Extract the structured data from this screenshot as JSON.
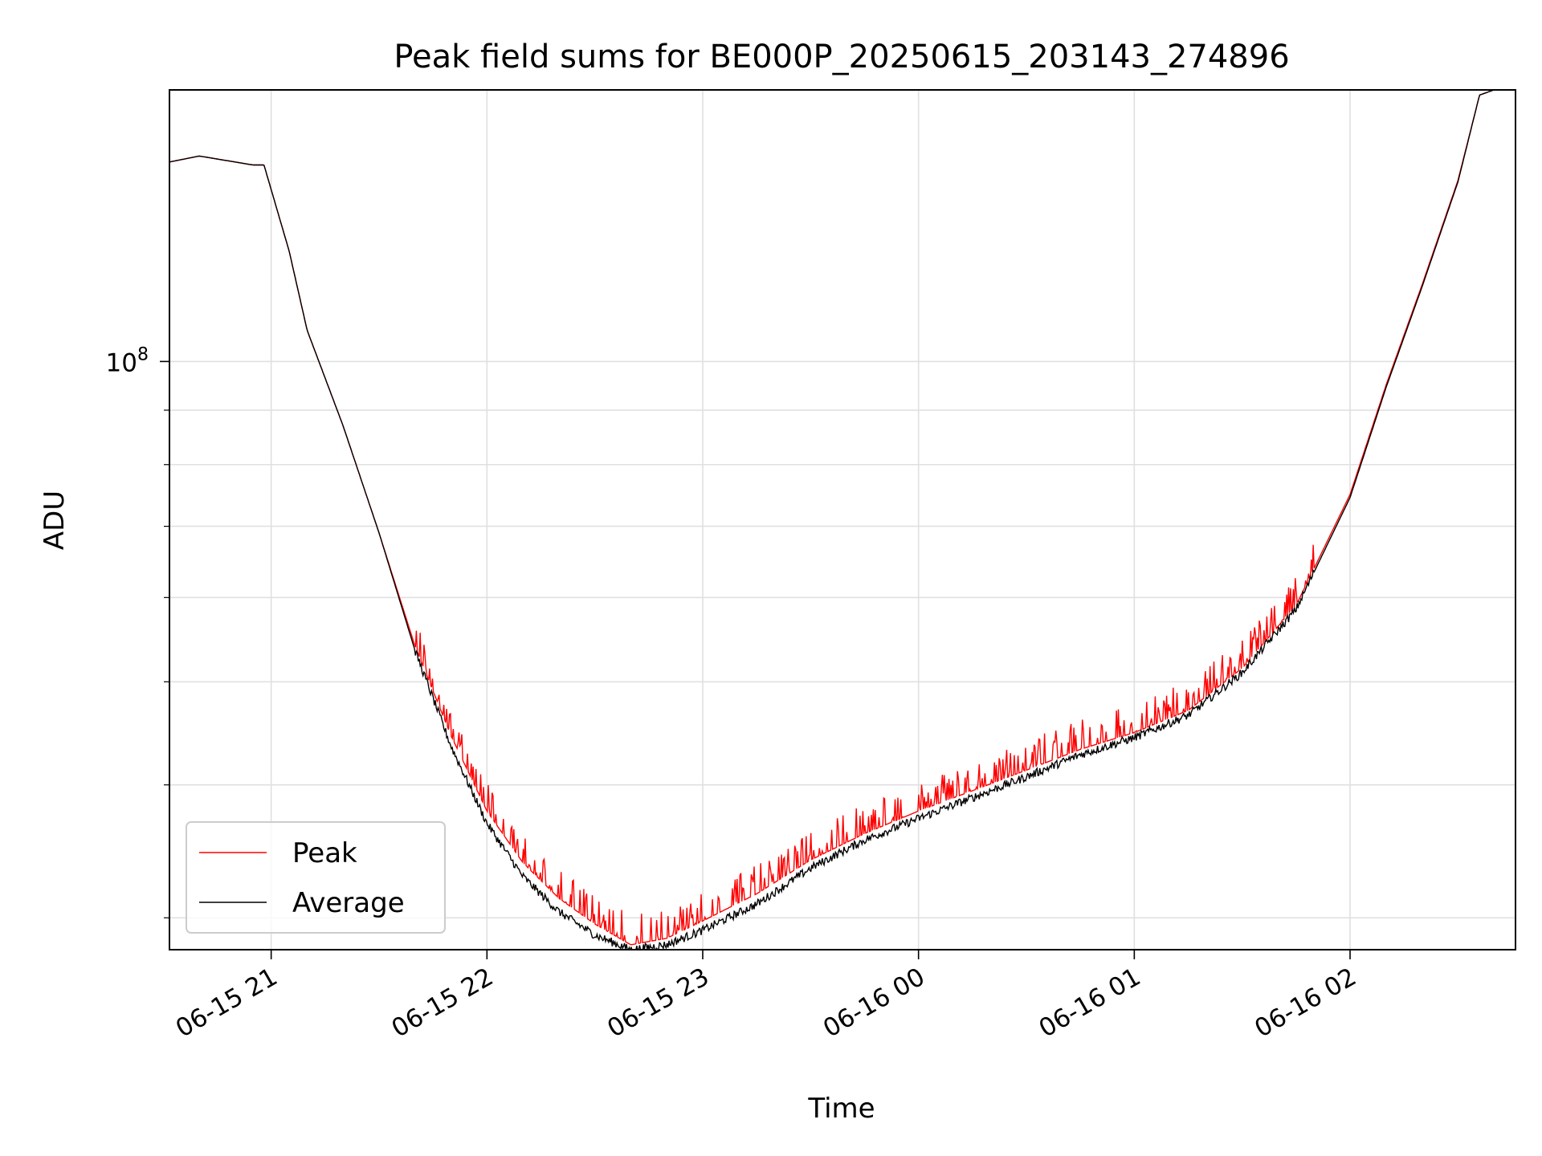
{
  "chart_data": {
    "type": "line",
    "title": "Peak field sums for BE000P_20250615_203143_274896",
    "xlabel": "Time",
    "ylabel": "ADU",
    "yscale": "log",
    "grid": true,
    "legend": "lower-left",
    "x_ticks": [
      "06-15 21",
      "06-15 22",
      "06-15 23",
      "06-16 00",
      "06-16 01",
      "06-16 02"
    ],
    "x_tick_values": [
      "2025-06-15T21:00",
      "2025-06-15T22:00",
      "2025-06-15T23:00",
      "2025-06-16T00:00",
      "2025-06-16T01:00",
      "2025-06-16T02:00"
    ],
    "xlim": [
      "2025-06-15T20:31:43",
      "2025-06-16T02:46"
    ],
    "y_tick_major": {
      "base": "10",
      "exponent": "8",
      "value": 100000000
    },
    "ylim": [
      28000000,
      180000000
    ],
    "series": [
      {
        "name": "Peak",
        "color": "#ff0000",
        "noise": "spiky-upward",
        "points": [
          [
            "2025-06-15T20:31:43",
            154000000
          ],
          [
            "2025-06-15T20:40",
            156000000
          ],
          [
            "2025-06-15T20:55",
            153000000
          ],
          [
            "2025-06-15T20:58",
            153000000
          ],
          [
            "2025-06-15T21:05",
            127000000
          ],
          [
            "2025-06-15T21:10",
            107000000
          ],
          [
            "2025-06-15T21:20",
            87000000
          ],
          [
            "2025-06-15T21:30",
            69000000
          ],
          [
            "2025-06-15T21:40",
            54000000
          ],
          [
            "2025-06-15T21:50",
            44500000
          ],
          [
            "2025-06-15T22:00",
            37800000
          ],
          [
            "2025-06-15T22:10",
            33800000
          ],
          [
            "2025-06-15T22:20",
            31300000
          ],
          [
            "2025-06-15T22:30",
            29600000
          ],
          [
            "2025-06-15T22:40",
            28300000
          ],
          [
            "2025-06-15T22:50",
            28700000
          ],
          [
            "2025-06-15T23:00",
            29800000
          ],
          [
            "2025-06-15T23:15",
            31600000
          ],
          [
            "2025-06-15T23:30",
            34000000
          ],
          [
            "2025-06-15T23:45",
            36000000
          ],
          [
            "2025-06-16T00:00",
            37800000
          ],
          [
            "2025-06-16T00:15",
            39500000
          ],
          [
            "2025-06-16T00:30",
            41300000
          ],
          [
            "2025-06-16T00:45",
            43200000
          ],
          [
            "2025-06-16T01:00",
            44800000
          ],
          [
            "2025-06-16T01:15",
            47000000
          ],
          [
            "2025-06-16T01:30",
            51500000
          ],
          [
            "2025-06-16T01:45",
            59000000
          ],
          [
            "2025-06-16T02:00",
            75000000
          ],
          [
            "2025-06-16T02:10",
            95000000
          ],
          [
            "2025-06-16T02:20",
            118000000
          ],
          [
            "2025-06-16T02:30",
            148000000
          ],
          [
            "2025-06-16T02:36",
            178000000
          ],
          [
            "2025-06-16T02:40",
            180000000
          ]
        ]
      },
      {
        "name": "Average",
        "color": "#000000",
        "noise": "small",
        "points": [
          [
            "2025-06-15T20:31:43",
            154000000
          ],
          [
            "2025-06-15T20:40",
            156000000
          ],
          [
            "2025-06-15T20:55",
            153000000
          ],
          [
            "2025-06-15T20:58",
            153000000
          ],
          [
            "2025-06-15T21:05",
            127000000
          ],
          [
            "2025-06-15T21:10",
            107000000
          ],
          [
            "2025-06-15T21:20",
            87000000
          ],
          [
            "2025-06-15T21:30",
            69000000
          ],
          [
            "2025-06-15T21:40",
            53500000
          ],
          [
            "2025-06-15T21:50",
            43500000
          ],
          [
            "2025-06-15T22:00",
            36800000
          ],
          [
            "2025-06-15T22:10",
            32800000
          ],
          [
            "2025-06-15T22:20",
            30400000
          ],
          [
            "2025-06-15T22:30",
            28900000
          ],
          [
            "2025-06-15T22:40",
            28000000
          ],
          [
            "2025-06-15T22:50",
            28300000
          ],
          [
            "2025-06-15T23:00",
            29200000
          ],
          [
            "2025-06-15T23:15",
            30900000
          ],
          [
            "2025-06-15T23:30",
            33400000
          ],
          [
            "2025-06-15T23:45",
            35500000
          ],
          [
            "2025-06-16T00:00",
            37200000
          ],
          [
            "2025-06-16T00:15",
            38900000
          ],
          [
            "2025-06-16T00:30",
            40700000
          ],
          [
            "2025-06-16T00:45",
            42700000
          ],
          [
            "2025-06-16T01:00",
            44300000
          ],
          [
            "2025-06-16T01:15",
            46500000
          ],
          [
            "2025-06-16T01:30",
            51000000
          ],
          [
            "2025-06-16T01:45",
            58500000
          ],
          [
            "2025-06-16T02:00",
            74500000
          ],
          [
            "2025-06-16T02:10",
            94500000
          ],
          [
            "2025-06-16T02:20",
            117500000
          ],
          [
            "2025-06-16T02:30",
            147500000
          ],
          [
            "2025-06-16T02:36",
            178000000
          ],
          [
            "2025-06-16T02:40",
            180000000
          ]
        ]
      }
    ]
  }
}
